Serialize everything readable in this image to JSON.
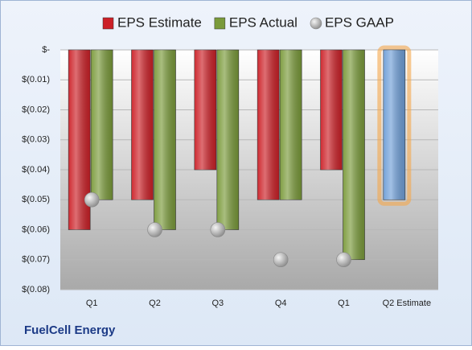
{
  "chart_data": {
    "type": "bar",
    "categories": [
      "Q1",
      "Q2",
      "Q3",
      "Q4",
      "Q1",
      "Q2 Estimate"
    ],
    "series": [
      {
        "name": "EPS Estimate",
        "color": "#cc2027",
        "colors": [
          "#cc2027",
          "#cc2027",
          "#cc2027",
          "#cc2027",
          "#cc2027",
          "#6f9fd8"
        ],
        "values": [
          -0.06,
          -0.05,
          -0.04,
          -0.05,
          -0.04,
          -0.05
        ]
      },
      {
        "name": "EPS Actual",
        "color": "#7a9a3a",
        "values": [
          -0.05,
          -0.06,
          -0.06,
          -0.05,
          -0.07,
          null
        ]
      },
      {
        "name": "EPS GAAP",
        "color": "#a8a8a8",
        "type": "scatter",
        "values": [
          -0.05,
          -0.06,
          -0.06,
          -0.07,
          -0.07,
          null
        ]
      }
    ],
    "ylim": [
      -0.08,
      0
    ],
    "yticks": [
      {
        "value": 0,
        "label": "$-"
      },
      {
        "value": -0.01,
        "label": "$(0.01)"
      },
      {
        "value": -0.02,
        "label": "$(0.02)"
      },
      {
        "value": -0.03,
        "label": "$(0.03)"
      },
      {
        "value": -0.04,
        "label": "$(0.04)"
      },
      {
        "value": -0.05,
        "label": "$(0.05)"
      },
      {
        "value": -0.06,
        "label": "$(0.06)"
      },
      {
        "value": -0.07,
        "label": "$(0.07)"
      },
      {
        "value": -0.08,
        "label": "$(0.08)"
      }
    ],
    "grid": true,
    "footer": "FuelCell Energy"
  }
}
